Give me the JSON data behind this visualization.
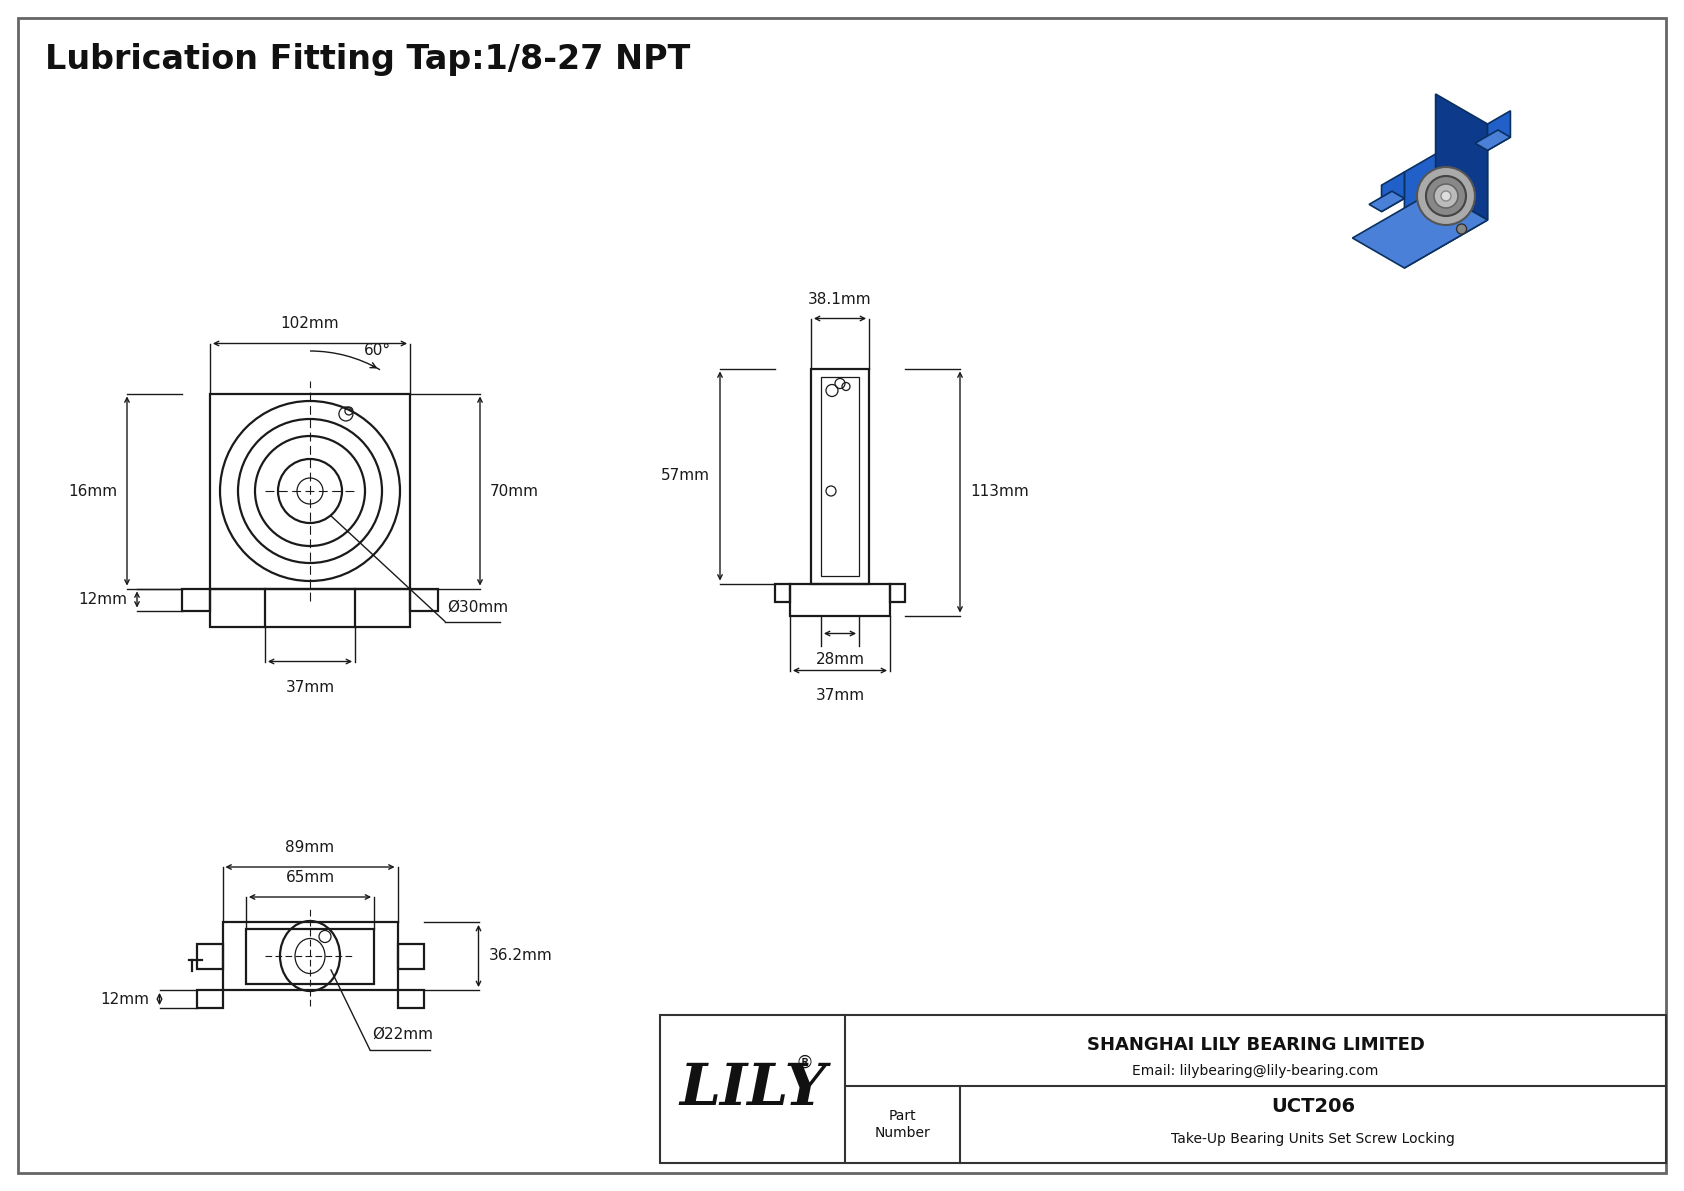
{
  "bg_color": "#ffffff",
  "line_color": "#1a1a1a",
  "title_text": "Lubrication Fitting Tap:1/8-27 NPT",
  "title_fontsize": 24,
  "dims_front": {
    "width": "102mm",
    "height_right": "70mm",
    "height_left": "16mm",
    "height_bottom": "12mm",
    "slot_width": "37mm",
    "bore": "Ø30mm",
    "angle": "60°"
  },
  "dims_side": {
    "width_top": "38.1mm",
    "height_left": "57mm",
    "height_right": "113mm",
    "base_width1": "28mm",
    "base_width2": "37mm"
  },
  "dims_bottom": {
    "width_outer": "89mm",
    "width_inner": "65mm",
    "height": "36.2mm",
    "notch": "12mm",
    "bore": "Ø22mm"
  },
  "company_full": "SHANGHAI LILY BEARING LIMITED",
  "company_email": "Email: lilybearing@lily-bearing.com",
  "part_number": "UCT206",
  "part_desc": "Take-Up Bearing Units Set Screw Locking",
  "part_label": "Part\nNumber",
  "blue_3d": "#2060c8",
  "blue_3d_dark": "#0d3a8a",
  "blue_3d_light": "#4a80d8"
}
